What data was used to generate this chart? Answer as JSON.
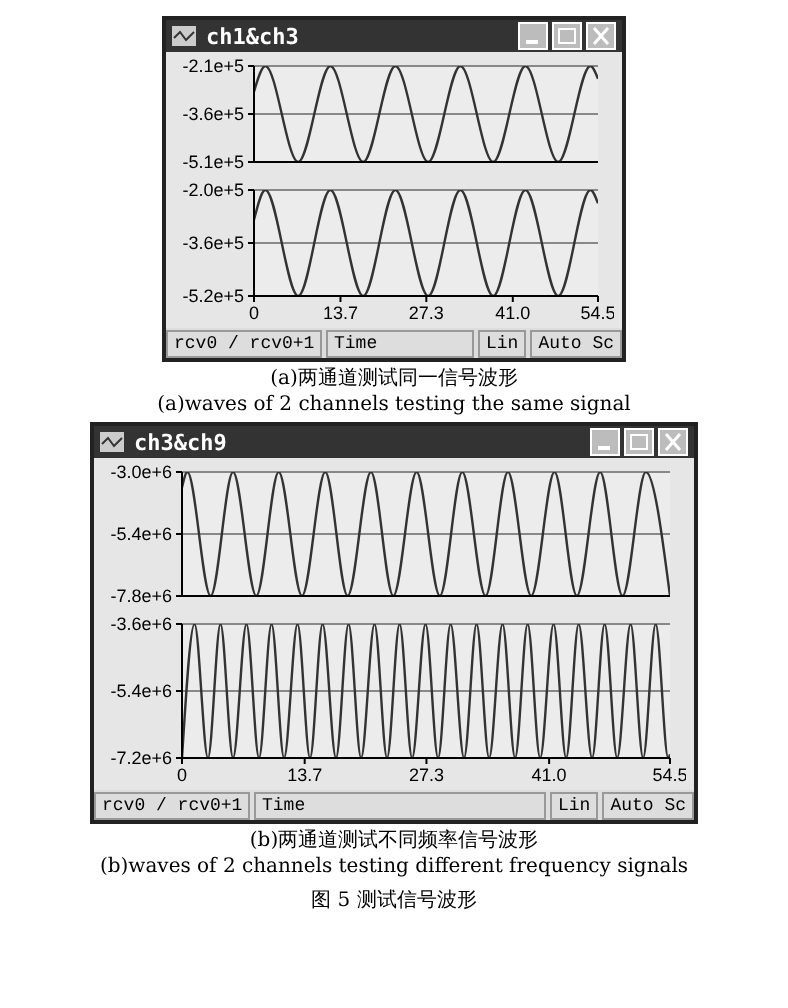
{
  "chart_data": [
    {
      "type": "line",
      "title": "ch1&ch3",
      "tick_labels": "y",
      "grid": "y",
      "xlim": [
        0,
        54.5
      ],
      "ylim": [
        -510000,
        -210000
      ],
      "yticks": [
        {
          "value": -510000,
          "label": "-5.1e+5"
        },
        {
          "value": -360000,
          "label": "-3.6e+5"
        },
        {
          "value": -210000,
          "label": "-2.1e+5"
        }
      ],
      "series": [
        {
          "color": "#333333",
          "x": [
            0,
            1.8,
            7.0,
            12.1,
            17.3,
            22.4,
            27.6,
            32.7,
            37.9,
            43.0,
            48.2,
            53.3,
            54.5
          ],
          "values": [
            -290000,
            -210000,
            -510000,
            -210000,
            -510000,
            -210000,
            -510000,
            -210000,
            -510000,
            -210000,
            -510000,
            -210000,
            -250000
          ]
        }
      ]
    },
    {
      "type": "line",
      "xlabel": "Time",
      "grid": "y",
      "xlim": [
        0,
        54.5
      ],
      "xticks": [
        0,
        13.7,
        27.3,
        {
          "value": 41,
          "label": "41.0"
        },
        54.5
      ],
      "ylim": [
        -520000,
        -200000
      ],
      "yticks": [
        {
          "value": -520000,
          "label": "-5.2e+5"
        },
        {
          "value": -360000,
          "label": "-3.6e+5"
        },
        {
          "value": -200000,
          "label": "-2.0e+5"
        }
      ],
      "series": [
        {
          "color": "#333333",
          "x": [
            0,
            1.8,
            7.0,
            12.1,
            17.3,
            22.4,
            27.6,
            32.7,
            37.9,
            43.0,
            48.2,
            53.3,
            54.5
          ],
          "values": [
            -290000,
            -200000,
            -520000,
            -200000,
            -520000,
            -200000,
            -520000,
            -200000,
            -520000,
            -200000,
            -520000,
            -200000,
            -240000
          ]
        }
      ],
      "annotations": [
        "rcv0 / rcv0+1",
        "Lin",
        "Auto Sc",
        "(a)两通道测试同一信号波形",
        "(a)waves of 2 channels testing the same signal"
      ]
    },
    {
      "type": "line",
      "title": "ch3&ch9",
      "tick_labels": "y",
      "grid": "y",
      "xlim": [
        0,
        54.5
      ],
      "ylim": [
        -7800000,
        -3000000
      ],
      "yticks": [
        {
          "value": -7800000,
          "label": "-7.8e+6"
        },
        {
          "value": -5400000,
          "label": "-5.4e+6"
        },
        {
          "value": -3000000,
          "label": "-3.0e+6"
        }
      ],
      "series": [
        {
          "color": "#333333",
          "x": [
            0,
            0.6,
            3.2,
            5.7,
            8.3,
            10.8,
            13.4,
            16.0,
            18.5,
            21.1,
            23.6,
            26.2,
            28.8,
            31.3,
            33.9,
            36.4,
            39.0,
            41.6,
            44.1,
            46.7,
            49.2,
            51.8,
            54.5
          ],
          "values": [
            -3600000,
            -3000000,
            -7800000,
            -3000000,
            -7800000,
            -3000000,
            -7800000,
            -3000000,
            -7800000,
            -3000000,
            -7800000,
            -3000000,
            -7800000,
            -3000000,
            -7800000,
            -3000000,
            -7800000,
            -3000000,
            -7800000,
            -3000000,
            -7800000,
            -3000000,
            -7800000
          ]
        }
      ]
    },
    {
      "type": "line",
      "xlabel": "Time",
      "grid": "y",
      "xlim": [
        0,
        54.5
      ],
      "xticks": [
        0,
        13.7,
        27.3,
        {
          "value": 41,
          "label": "41.0"
        },
        54.5
      ],
      "ylim": [
        -7200000,
        -3600000
      ],
      "yticks": [
        {
          "value": -7200000,
          "label": "-7.2e+6"
        },
        {
          "value": -5400000,
          "label": "-5.4e+6"
        },
        {
          "value": -3600000,
          "label": "-3.6e+6"
        }
      ],
      "series": [
        {
          "color": "#333333",
          "x": [
            0,
            1.4,
            2.9,
            4.3,
            5.7,
            7.2,
            8.6,
            10.0,
            11.4,
            12.9,
            14.3,
            15.7,
            17.2,
            18.6,
            20.0,
            21.5,
            22.9,
            24.3,
            25.7,
            27.2,
            28.6,
            30.0,
            31.5,
            32.9,
            34.3,
            35.8,
            37.2,
            38.6,
            40.0,
            41.5,
            42.9,
            44.3,
            45.8,
            47.2,
            48.6,
            50.1,
            51.5,
            52.9,
            54.3,
            54.5
          ],
          "values": [
            -7200000,
            -3600000,
            -7200000,
            -3600000,
            -7200000,
            -3600000,
            -7200000,
            -3600000,
            -7200000,
            -3600000,
            -7200000,
            -3600000,
            -7200000,
            -3600000,
            -7200000,
            -3600000,
            -7200000,
            -3600000,
            -7200000,
            -3600000,
            -7200000,
            -3600000,
            -7200000,
            -3600000,
            -7200000,
            -3600000,
            -7200000,
            -3600000,
            -7200000,
            -3600000,
            -7200000,
            -3600000,
            -7200000,
            -3600000,
            -7200000,
            -3600000,
            -7200000,
            -3600000,
            -7200000,
            -7100000
          ]
        }
      ],
      "annotations": [
        "rcv0 / rcv0+1",
        "Lin",
        "Auto Sc",
        "(b)两通道测试不同频率信号波形",
        "(b)waves of 2 channels testing different frequency signals",
        "图 5  测试信号波形"
      ]
    }
  ]
}
